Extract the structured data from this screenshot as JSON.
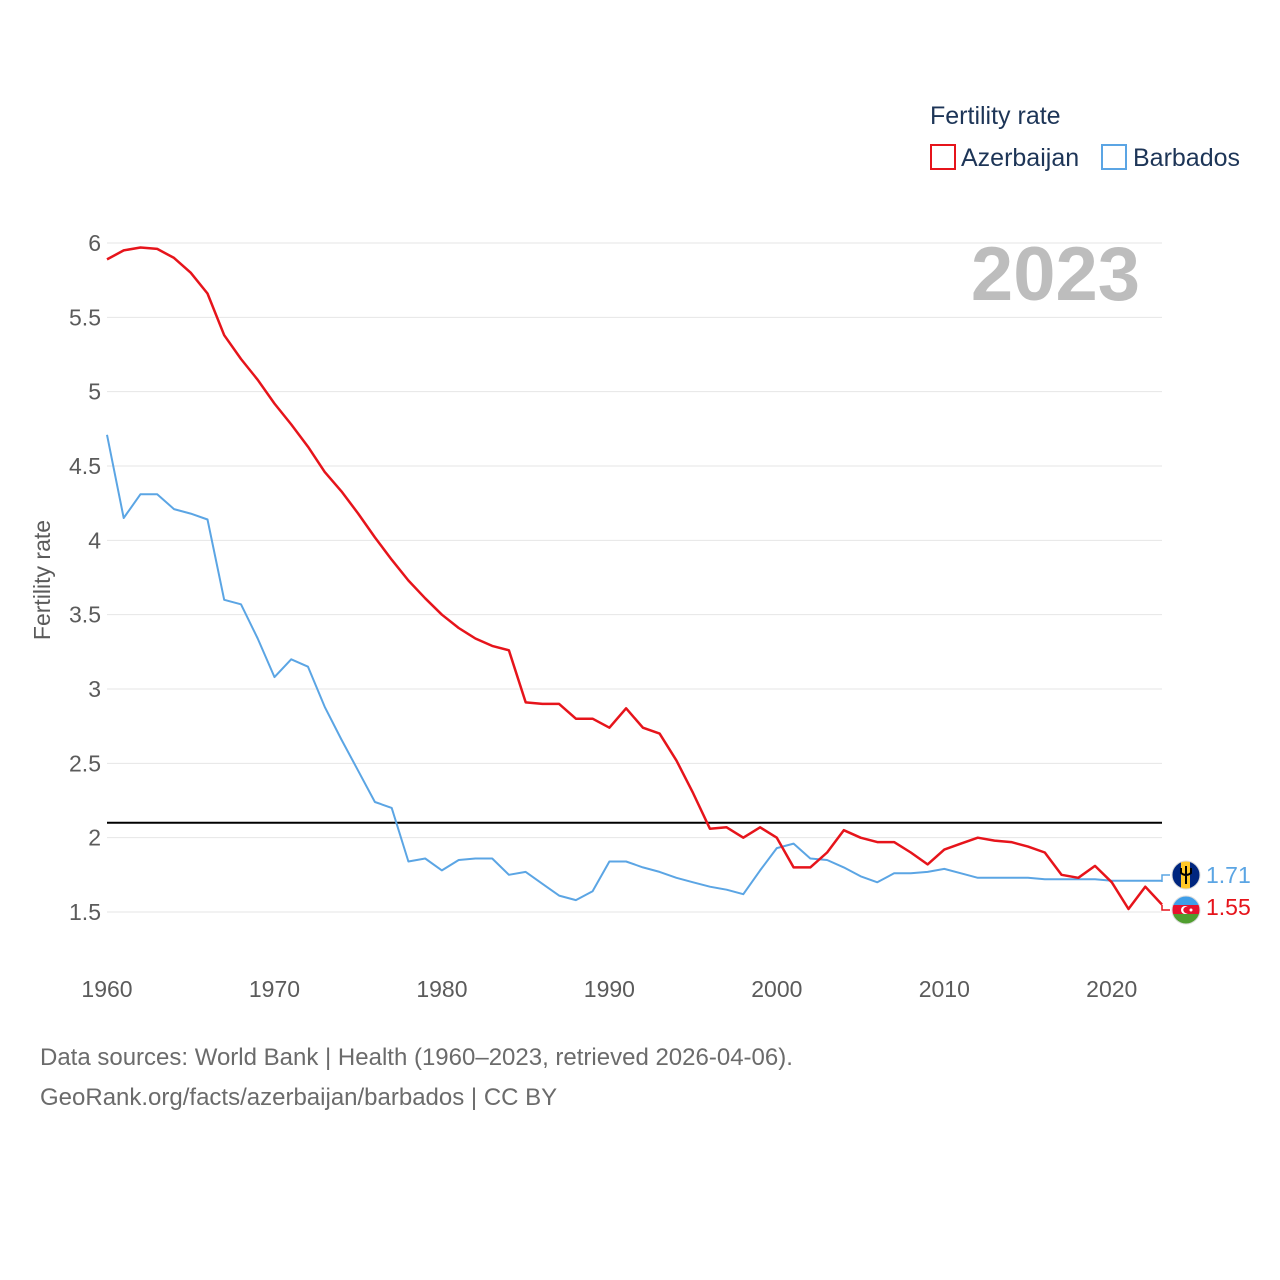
{
  "chart_data": {
    "type": "line",
    "title": "Fertility rate",
    "ylabel": "Fertility rate",
    "xlabel": "",
    "xlim": [
      1960,
      2023
    ],
    "ylim": [
      1.3,
      6.1
    ],
    "x_ticks": [
      1960,
      1970,
      1980,
      1990,
      2000,
      2010,
      2020
    ],
    "y_ticks": [
      1.5,
      2,
      2.5,
      3,
      3.5,
      4,
      4.5,
      5,
      5.5,
      6
    ],
    "grid": true,
    "legend_position": "top-right",
    "year_label": "2023",
    "reference_line": {
      "y": 2.1,
      "color": "#000000"
    },
    "x": [
      1960,
      1961,
      1962,
      1963,
      1964,
      1965,
      1966,
      1967,
      1968,
      1969,
      1970,
      1971,
      1972,
      1973,
      1974,
      1975,
      1976,
      1977,
      1978,
      1979,
      1980,
      1981,
      1982,
      1983,
      1984,
      1985,
      1986,
      1987,
      1988,
      1989,
      1990,
      1991,
      1992,
      1993,
      1994,
      1995,
      1996,
      1997,
      1998,
      1999,
      2000,
      2001,
      2002,
      2003,
      2004,
      2005,
      2006,
      2007,
      2008,
      2009,
      2010,
      2011,
      2012,
      2013,
      2014,
      2015,
      2016,
      2017,
      2018,
      2019,
      2020,
      2021,
      2022,
      2023
    ],
    "series": [
      {
        "name": "Azerbaijan",
        "color": "#e6141b",
        "end_label": "1.55",
        "values": [
          5.89,
          5.95,
          5.97,
          5.96,
          5.9,
          5.8,
          5.66,
          5.38,
          5.22,
          5.08,
          4.92,
          4.78,
          4.63,
          4.46,
          4.33,
          4.18,
          4.02,
          3.87,
          3.73,
          3.61,
          3.5,
          3.41,
          3.34,
          3.29,
          3.26,
          2.91,
          2.9,
          2.9,
          2.8,
          2.8,
          2.74,
          2.87,
          2.74,
          2.7,
          2.52,
          2.3,
          2.06,
          2.07,
          2.0,
          2.07,
          2.0,
          1.8,
          1.8,
          1.9,
          2.05,
          2.0,
          1.97,
          1.97,
          1.9,
          1.82,
          1.92,
          1.96,
          2.0,
          1.98,
          1.97,
          1.94,
          1.9,
          1.75,
          1.73,
          1.81,
          1.7,
          1.52,
          1.67,
          1.55
        ]
      },
      {
        "name": "Barbados",
        "color": "#5ba5e4",
        "end_label": "1.71",
        "values": [
          4.71,
          4.15,
          4.31,
          4.31,
          4.21,
          4.18,
          4.14,
          3.6,
          3.57,
          3.34,
          3.08,
          3.2,
          3.15,
          2.88,
          2.66,
          2.45,
          2.24,
          2.2,
          1.84,
          1.86,
          1.78,
          1.85,
          1.86,
          1.86,
          1.75,
          1.77,
          1.69,
          1.61,
          1.58,
          1.64,
          1.84,
          1.84,
          1.8,
          1.77,
          1.73,
          1.7,
          1.67,
          1.65,
          1.62,
          1.78,
          1.93,
          1.96,
          1.86,
          1.85,
          1.8,
          1.74,
          1.7,
          1.76,
          1.76,
          1.77,
          1.79,
          1.76,
          1.73,
          1.73,
          1.73,
          1.73,
          1.72,
          1.72,
          1.72,
          1.72,
          1.71,
          1.71,
          1.71,
          1.71
        ]
      }
    ]
  },
  "legend": {
    "title": "Fertility rate",
    "items": [
      "Azerbaijan",
      "Barbados"
    ]
  },
  "flags": {
    "barbados_icon": "barbados-flag",
    "azerbaijan_icon": "azerbaijan-flag"
  },
  "footer": {
    "line1": "Data sources: World Bank | Health (1960–2023, retrieved 2026-04-06).",
    "line2": "GeoRank.org/facts/azerbaijan/barbados | CC BY"
  }
}
